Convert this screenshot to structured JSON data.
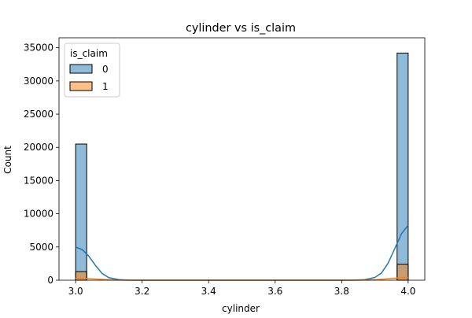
{
  "chart_data": {
    "type": "bar",
    "title": "cylinder vs is_claim",
    "xlabel": "cylinder",
    "ylabel": "Count",
    "xlim": [
      2.95,
      4.05
    ],
    "ylim": [
      0,
      36500
    ],
    "x_ticks": [
      3.0,
      3.2,
      3.4,
      3.6,
      3.8,
      4.0
    ],
    "x_tick_labels": [
      "3.0",
      "3.2",
      "3.4",
      "3.6",
      "3.8",
      "4.0"
    ],
    "y_ticks": [
      0,
      5000,
      10000,
      15000,
      20000,
      25000,
      30000,
      35000
    ],
    "y_tick_labels": [
      "0",
      "5000",
      "10000",
      "15000",
      "20000",
      "25000",
      "30000",
      "35000"
    ],
    "legend": {
      "title": "is_claim",
      "placement": "top-left"
    },
    "bin_width": 0.0333,
    "series": [
      {
        "name": "0",
        "color": "#1f77b4",
        "fill": "#8fb6d4",
        "bars": [
          {
            "x0": 3.0,
            "x1": 3.0333,
            "count": 20500
          },
          {
            "x0": 3.9667,
            "x1": 4.0,
            "count": 34200
          }
        ],
        "kde": [
          [
            3.0,
            5000
          ],
          [
            3.02,
            4600
          ],
          [
            3.04,
            3600
          ],
          [
            3.06,
            2200
          ],
          [
            3.08,
            1000
          ],
          [
            3.1,
            380
          ],
          [
            3.13,
            90
          ],
          [
            3.16,
            10
          ],
          [
            3.2,
            0
          ],
          [
            3.8,
            0
          ],
          [
            3.84,
            10
          ],
          [
            3.87,
            90
          ],
          [
            3.9,
            420
          ],
          [
            3.92,
            1100
          ],
          [
            3.94,
            2600
          ],
          [
            3.96,
            4800
          ],
          [
            3.98,
            7000
          ],
          [
            4.0,
            8300
          ]
        ]
      },
      {
        "name": "1",
        "color": "#ff7f0e",
        "fill": "#fdbb84",
        "bars": [
          {
            "x0": 3.0,
            "x1": 3.0333,
            "count": 1300
          },
          {
            "x0": 3.9667,
            "x1": 4.0,
            "count": 2400
          }
        ],
        "kde": [
          [
            3.0,
            300
          ],
          [
            3.03,
            260
          ],
          [
            3.06,
            180
          ],
          [
            3.09,
            90
          ],
          [
            3.12,
            30
          ],
          [
            3.16,
            5
          ],
          [
            3.2,
            0
          ],
          [
            3.8,
            0
          ],
          [
            3.84,
            5
          ],
          [
            3.88,
            40
          ],
          [
            3.91,
            110
          ],
          [
            3.94,
            220
          ],
          [
            3.97,
            340
          ],
          [
            4.0,
            420
          ]
        ]
      }
    ]
  }
}
